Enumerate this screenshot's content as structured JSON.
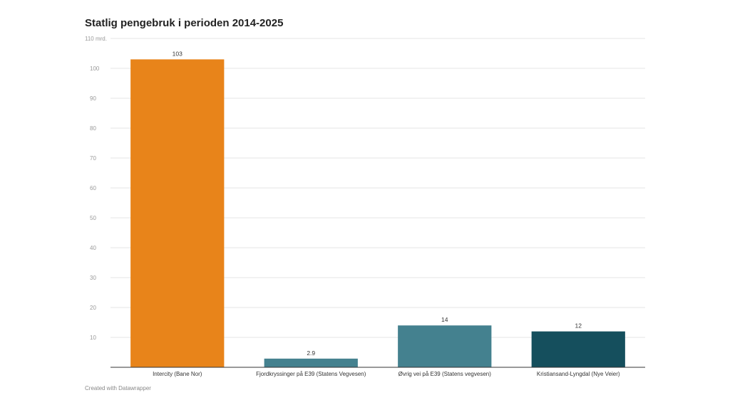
{
  "chart_data": {
    "type": "bar",
    "title": "Statlig pengebruk i perioden 2014-2025",
    "unit_label": "110 mrd.",
    "categories": [
      "Intercity (Bane Nor)",
      "Fjordkryssinger på E39 (Statens Vegvesen)",
      "Øvrig vei på E39 (Statens vegvesen)",
      "Kristiansand-Lyngdal (Nye Veier)"
    ],
    "values": [
      103,
      2.9,
      14,
      12
    ],
    "value_labels": [
      "103",
      "2.9",
      "14",
      "12"
    ],
    "colors": [
      "#e8841a",
      "#44818f",
      "#44818f",
      "#154f5d"
    ],
    "yticks": [
      10,
      20,
      30,
      40,
      50,
      60,
      70,
      80,
      90,
      100
    ],
    "ylim": [
      0,
      110
    ],
    "xlabel": "",
    "ylabel": "",
    "grid": true
  },
  "footer": "Created with Datawrapper"
}
